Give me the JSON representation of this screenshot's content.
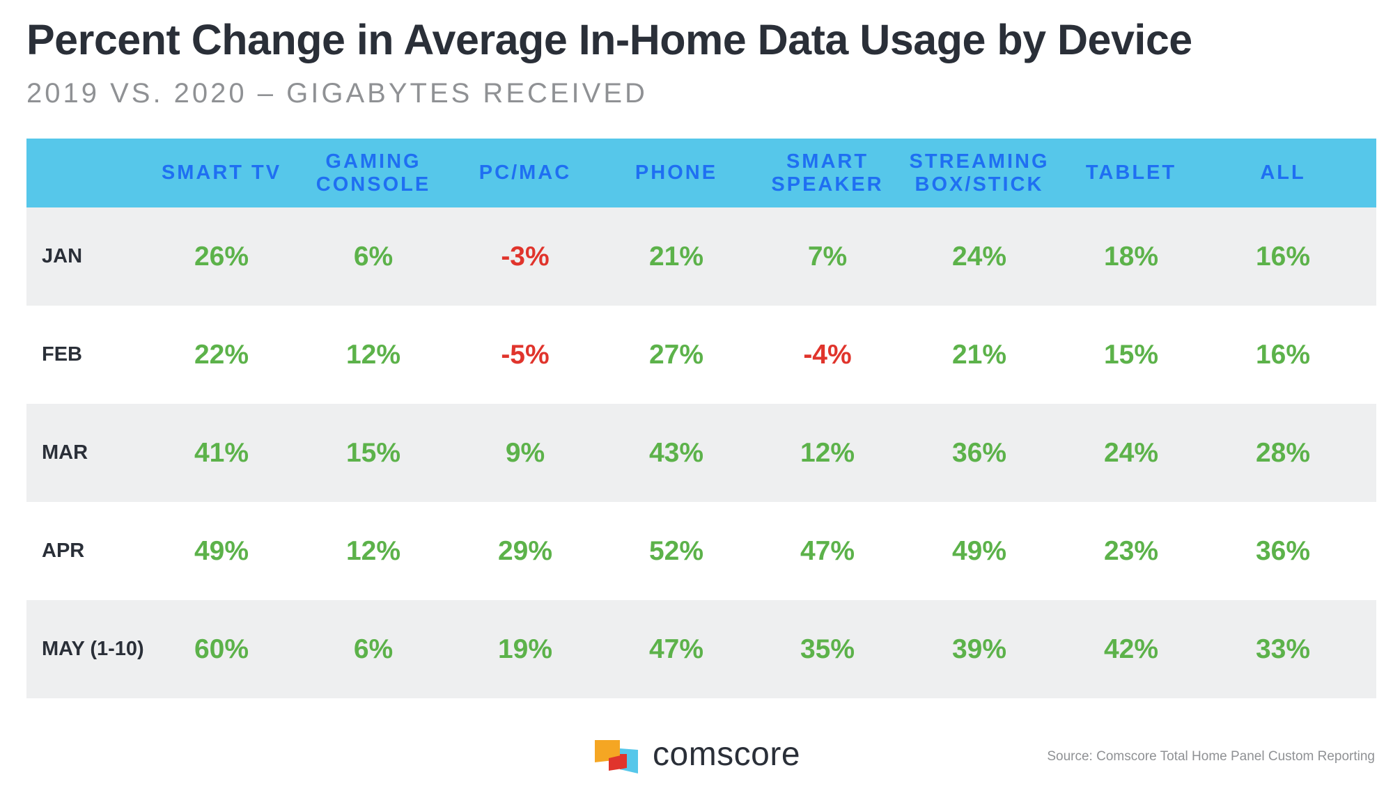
{
  "title": "Percent Change in Average In-Home Data Usage by Device",
  "subtitle": "2019 VS. 2020 – GIGABYTES RECEIVED",
  "colors": {
    "header_bg": "#56c7ea",
    "header_text": "#1f6ff2",
    "positive": "#5cb24a",
    "negative": "#e0342c",
    "row_shade": "#eeeff0",
    "text_dark": "#2a2f38"
  },
  "chart_data": {
    "type": "table",
    "columns": [
      "SMART TV",
      "GAMING\nCONSOLE",
      "PC/MAC",
      "PHONE",
      "SMART\nSPEAKER",
      "STREAMING\nBOX/STICK",
      "TABLET",
      "ALL"
    ],
    "rows": [
      {
        "label": "JAN",
        "values": [
          "26%",
          "6%",
          "-3%",
          "21%",
          "7%",
          "24%",
          "18%",
          "16%"
        ]
      },
      {
        "label": "FEB",
        "values": [
          "22%",
          "12%",
          "-5%",
          "27%",
          "-4%",
          "21%",
          "15%",
          "16%"
        ]
      },
      {
        "label": "MAR",
        "values": [
          "41%",
          "15%",
          "9%",
          "43%",
          "12%",
          "36%",
          "24%",
          "28%"
        ]
      },
      {
        "label": "APR",
        "values": [
          "49%",
          "12%",
          "29%",
          "52%",
          "47%",
          "49%",
          "23%",
          "36%"
        ]
      },
      {
        "label": "MAY (1-10)",
        "values": [
          "60%",
          "6%",
          "19%",
          "47%",
          "35%",
          "39%",
          "42%",
          "33%"
        ]
      }
    ]
  },
  "footer": {
    "logo_text": "comscore",
    "source": "Source: Comscore Total Home Panel Custom Reporting"
  }
}
